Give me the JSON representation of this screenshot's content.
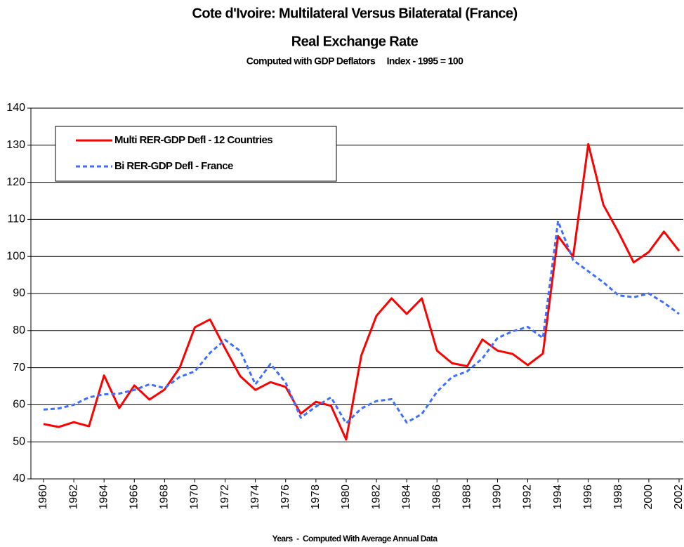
{
  "chart_data": {
    "type": "line",
    "title": "Cote d'Ivoire: Multilateral Versus Bilateratal (France)",
    "subtitle": "Real Exchange Rate",
    "annotation": "Computed with GDP Deflators     Index - 1995 = 100",
    "x_label": "Years  -  Computed With Average Annual Data",
    "x": [
      1960,
      1961,
      1962,
      1963,
      1964,
      1965,
      1966,
      1967,
      1968,
      1969,
      1970,
      1971,
      1972,
      1973,
      1974,
      1975,
      1976,
      1977,
      1978,
      1979,
      1980,
      1981,
      1982,
      1983,
      1984,
      1985,
      1986,
      1987,
      1988,
      1989,
      1990,
      1991,
      1992,
      1993,
      1994,
      1995,
      1996,
      1997,
      1998,
      1999,
      2000,
      2001,
      2002
    ],
    "series": [
      {
        "name": "Multi RER-GDP Defl - 12 Countries",
        "color": "#ff0000",
        "dash": false,
        "values": [
          54.8,
          54.0,
          55.3,
          54.2,
          67.9,
          59.1,
          65.2,
          61.4,
          64.1,
          70.0,
          80.9,
          83.0,
          75.2,
          67.7,
          64.0,
          66.1,
          64.8,
          57.6,
          60.8,
          59.7,
          50.6,
          73.3,
          84.0,
          88.7,
          84.5,
          88.7,
          74.6,
          71.2,
          70.4,
          77.6,
          74.6,
          73.7,
          70.7,
          73.8,
          105.5,
          100.0,
          130.3,
          113.9,
          106.5,
          98.4,
          101.2,
          106.7,
          101.5
        ]
      },
      {
        "name": "Bi RER-GDP Defl - France",
        "color": "#3f6fff",
        "dash": true,
        "values": [
          58.7,
          59.0,
          60.0,
          62.0,
          62.8,
          63.0,
          64.0,
          65.5,
          64.5,
          67.5,
          69.0,
          74.0,
          77.5,
          74.5,
          65.5,
          71.0,
          66.0,
          56.5,
          59.5,
          62.0,
          55.0,
          59.0,
          61.0,
          61.5,
          55.2,
          57.5,
          63.5,
          67.5,
          69.0,
          72.5,
          78.0,
          79.8,
          81.0,
          78.0,
          109.5,
          99.0,
          96.0,
          93.0,
          89.5,
          89.0,
          90.0,
          87.5,
          84.5
        ]
      }
    ],
    "xlim": [
      1960,
      2002
    ],
    "xticks": [
      1960,
      1962,
      1964,
      1966,
      1968,
      1970,
      1972,
      1974,
      1976,
      1978,
      1980,
      1982,
      1984,
      1986,
      1988,
      1990,
      1992,
      1994,
      1996,
      1998,
      2000,
      2002
    ],
    "ylim": [
      40,
      140
    ],
    "yticks": [
      40,
      50,
      60,
      70,
      80,
      90,
      100,
      110,
      120,
      130,
      140
    ],
    "grid": true,
    "legend": "upper left"
  }
}
